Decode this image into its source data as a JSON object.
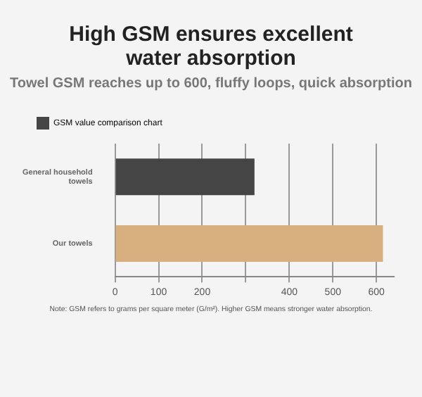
{
  "chart_data": {
    "type": "bar",
    "orientation": "horizontal",
    "title": "High GSM ensures excellent water absorption",
    "subtitle": "Towel GSM reaches up to 600, fluffy loops, quick absorption",
    "categories": [
      "General household towels",
      "Our towels"
    ],
    "series": [
      {
        "name": "GSM value comparison chart",
        "color": "#454545",
        "colors": [
          "#454545",
          "#d8b07f"
        ],
        "values": [
          320,
          615
        ]
      }
    ],
    "xlim": [
      0,
      640
    ],
    "xticks": [
      0,
      100,
      200,
      {
        "value": 300,
        "label": null
      },
      400,
      500,
      600
    ],
    "grid": "x",
    "legend": "top left",
    "annotations": [
      "Note: GSM refers to grams per square meter (G/m²). Higher GSM means stronger water absorption."
    ]
  }
}
